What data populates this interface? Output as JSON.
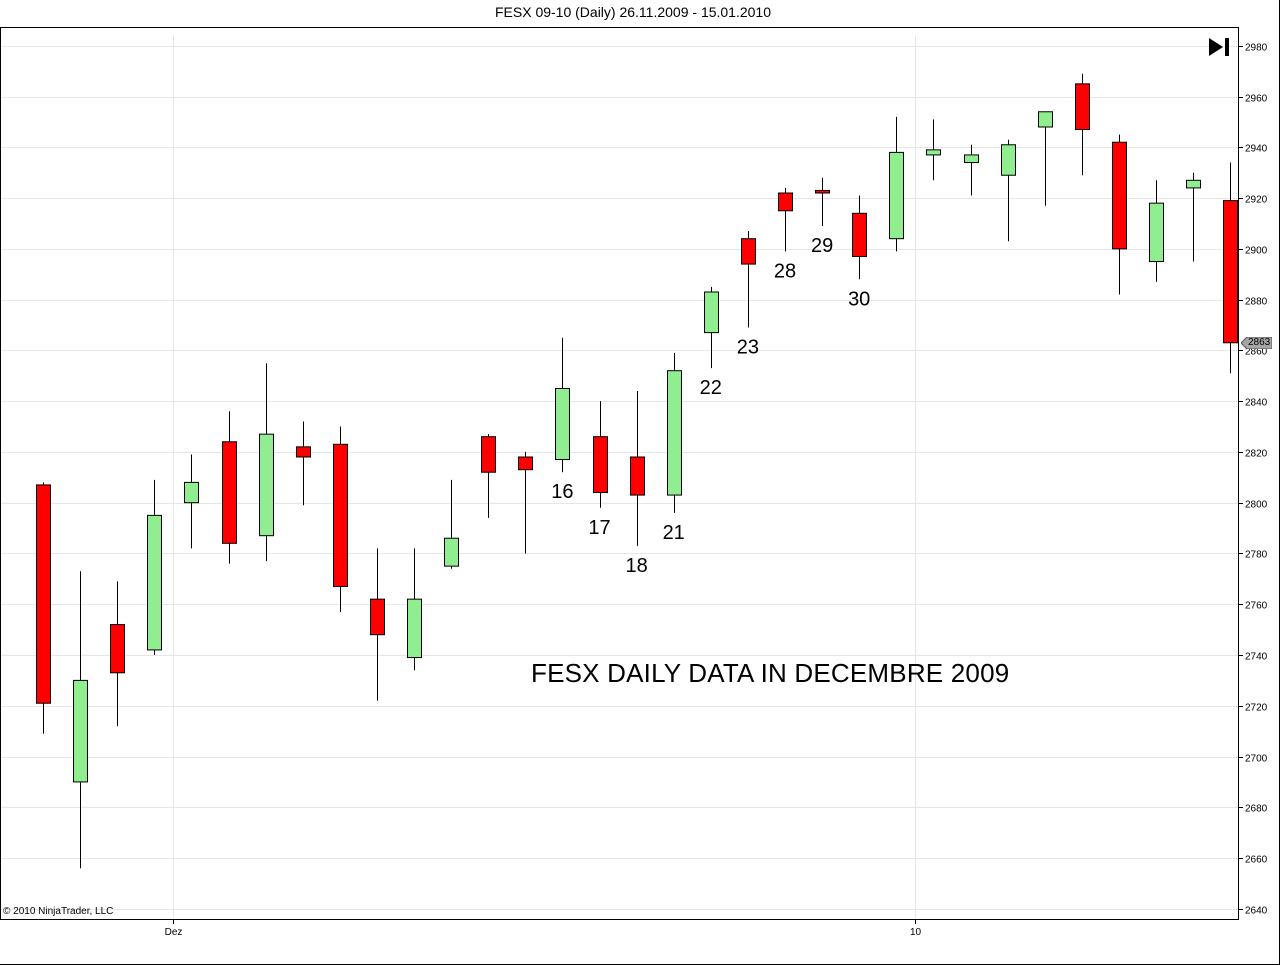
{
  "title": "FESX 09-10 (Daily)  26.11.2009 - 15.01.2010",
  "copyright": "© 2010 NinjaTrader, LLC",
  "annotation": "FESX DAILY DATA IN DECEMBRE 2009",
  "last_price_label": "2863",
  "go_latest_icon": "skip-to-end-icon",
  "colors": {
    "up": "#90EE90",
    "down": "#FF0000",
    "grid": "#e6e6e6",
    "axis": "#000000"
  },
  "chart_data": {
    "type": "candlestick",
    "title": "FESX 09-10 (Daily)  26.11.2009 - 15.01.2010",
    "ylim": [
      2636,
      2987
    ],
    "y_ticks": [
      2640,
      2660,
      2680,
      2700,
      2720,
      2740,
      2760,
      2780,
      2800,
      2820,
      2840,
      2860,
      2880,
      2900,
      2920,
      2940,
      2960,
      2980
    ],
    "x_tick_labels": [
      {
        "label": "Dez",
        "after_index": 3
      },
      {
        "label": "10",
        "after_index": 23
      }
    ],
    "y_axis_position": "right",
    "grid": true,
    "candles": [
      {
        "open": 2807,
        "high": 2808,
        "low": 2709,
        "close": 2721
      },
      {
        "open": 2690,
        "high": 2773,
        "low": 2656,
        "close": 2730
      },
      {
        "open": 2752,
        "high": 2769,
        "low": 2712,
        "close": 2733
      },
      {
        "open": 2742,
        "high": 2809,
        "low": 2740,
        "close": 2795
      },
      {
        "open": 2800,
        "high": 2819,
        "low": 2782,
        "close": 2808
      },
      {
        "open": 2824,
        "high": 2836,
        "low": 2776,
        "close": 2784
      },
      {
        "open": 2787,
        "high": 2855,
        "low": 2777,
        "close": 2827
      },
      {
        "open": 2822,
        "high": 2832,
        "low": 2799,
        "close": 2818
      },
      {
        "open": 2823,
        "high": 2830,
        "low": 2757,
        "close": 2767
      },
      {
        "open": 2762,
        "high": 2782,
        "low": 2722,
        "close": 2748
      },
      {
        "open": 2739,
        "high": 2782,
        "low": 2734,
        "close": 2762
      },
      {
        "open": 2775,
        "high": 2809,
        "low": 2774,
        "close": 2786
      },
      {
        "open": 2826,
        "high": 2827,
        "low": 2794,
        "close": 2812
      },
      {
        "open": 2818,
        "high": 2820,
        "low": 2780,
        "close": 2813
      },
      {
        "open": 2817,
        "high": 2865,
        "low": 2812,
        "close": 2845
      },
      {
        "open": 2826,
        "high": 2840,
        "low": 2798,
        "close": 2804
      },
      {
        "open": 2818,
        "high": 2844,
        "low": 2783,
        "close": 2803
      },
      {
        "open": 2803,
        "high": 2859,
        "low": 2796,
        "close": 2852
      },
      {
        "open": 2867,
        "high": 2885,
        "low": 2853,
        "close": 2883
      },
      {
        "open": 2904,
        "high": 2907,
        "low": 2869,
        "close": 2894
      },
      {
        "open": 2922,
        "high": 2924,
        "low": 2899,
        "close": 2915
      },
      {
        "open": 2923,
        "high": 2928,
        "low": 2909,
        "close": 2922
      },
      {
        "open": 2914,
        "high": 2921,
        "low": 2888,
        "close": 2897
      },
      {
        "open": 2904,
        "high": 2952,
        "low": 2899,
        "close": 2938
      },
      {
        "open": 2937,
        "high": 2951,
        "low": 2927,
        "close": 2939
      },
      {
        "open": 2934,
        "high": 2941,
        "low": 2921,
        "close": 2937
      },
      {
        "open": 2929,
        "high": 2943,
        "low": 2903,
        "close": 2941
      },
      {
        "open": 2948,
        "high": 2954,
        "low": 2917,
        "close": 2954
      },
      {
        "open": 2965,
        "high": 2969,
        "low": 2929,
        "close": 2947
      },
      {
        "open": 2942,
        "high": 2945,
        "low": 2882,
        "close": 2900
      },
      {
        "open": 2895,
        "high": 2927,
        "low": 2887,
        "close": 2918
      },
      {
        "open": 2924,
        "high": 2930,
        "low": 2895,
        "close": 2927
      },
      {
        "open": 2919,
        "high": 2934,
        "low": 2851,
        "close": 2863
      }
    ],
    "day_labels": [
      {
        "label": "16",
        "index": 14
      },
      {
        "label": "17",
        "index": 15
      },
      {
        "label": "18",
        "index": 16
      },
      {
        "label": "21",
        "index": 17
      },
      {
        "label": "22",
        "index": 18
      },
      {
        "label": "23",
        "index": 19
      },
      {
        "label": "28",
        "index": 20
      },
      {
        "label": "29",
        "index": 21
      },
      {
        "label": "30",
        "index": 22
      }
    ],
    "last_price": 2863
  }
}
